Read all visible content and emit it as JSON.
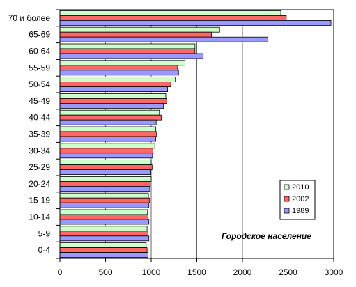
{
  "chart_data": {
    "type": "bar",
    "orientation": "horizontal",
    "categories": [
      "0-4",
      "5-9",
      "10-14",
      "15-19",
      "20-24",
      "25-29",
      "30-34",
      "35-39",
      "40-44",
      "45-49",
      "50-54",
      "55-59",
      "60-64",
      "65-69",
      "70 и более"
    ],
    "series": [
      {
        "name": "2010",
        "color": "#ccffcc",
        "values": [
          945,
          955,
          960,
          970,
          1000,
          1000,
          1040,
          1050,
          1090,
          1160,
          1265,
          1370,
          1480,
          1750,
          2420
        ]
      },
      {
        "name": "2002",
        "color": "#ff6666",
        "values": [
          955,
          965,
          965,
          980,
          990,
          1010,
          1020,
          1060,
          1110,
          1170,
          1215,
          1290,
          1480,
          1660,
          2480
        ]
      },
      {
        "name": "1989",
        "color": "#9999ff",
        "values": [
          965,
          975,
          975,
          975,
          985,
          995,
          1015,
          1050,
          1055,
          1135,
          1180,
          1300,
          1570,
          2280,
          2970
        ]
      }
    ],
    "xlim": [
      0,
      3000
    ],
    "xticks": [
      "0",
      "500",
      "1000",
      "1500",
      "2000",
      "2500",
      "3000"
    ],
    "grid": true,
    "legend_position": "right, lower",
    "annotation": "Городское население"
  }
}
